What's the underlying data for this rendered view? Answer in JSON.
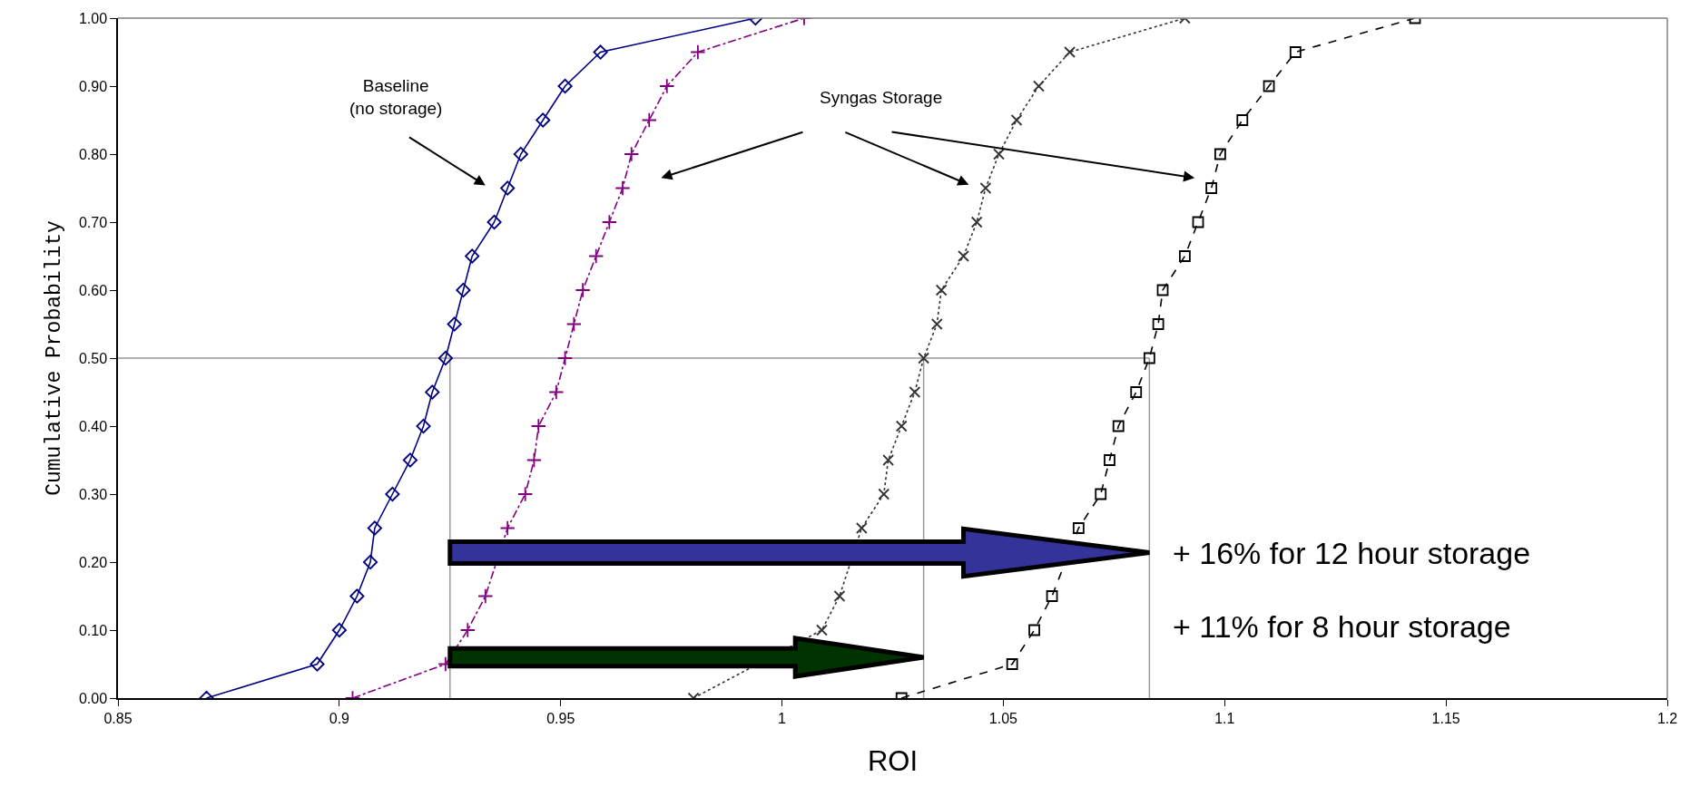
{
  "chart_data": {
    "type": "line",
    "xlabel": "ROI",
    "ylabel": "Cumulative Probability",
    "series": [
      {
        "color": "#000080",
        "marker": "diamond",
        "line_style": "solid",
        "x": [
          0.87,
          0.895,
          0.9,
          0.904,
          0.907,
          0.908,
          0.912,
          0.916,
          0.919,
          0.921,
          0.924,
          0.926,
          0.928,
          0.93,
          0.935,
          0.938,
          0.941,
          0.946,
          0.951,
          0.959,
          0.994
        ],
        "values": [
          0,
          0.05,
          0.1,
          0.15,
          0.2,
          0.25,
          0.3,
          0.35,
          0.4,
          0.45,
          0.5,
          0.55,
          0.6,
          0.65,
          0.7,
          0.75,
          0.8,
          0.85,
          0.9,
          0.95,
          1.0
        ]
      },
      {
        "color": "#800080",
        "marker": "cross",
        "line_style": "dashdot",
        "x": [
          0.903,
          0.924,
          0.929,
          0.933,
          null,
          0.938,
          0.942,
          0.944,
          0.945,
          0.949,
          0.951,
          0.953,
          0.955,
          0.958,
          0.961,
          0.964,
          0.966,
          0.97,
          0.974,
          0.981,
          1.005
        ],
        "values": [
          0,
          0.05,
          0.1,
          0.15,
          null,
          0.25,
          0.3,
          0.35,
          0.4,
          0.45,
          0.5,
          0.55,
          0.6,
          0.65,
          0.7,
          0.75,
          0.8,
          0.85,
          0.9,
          0.95,
          1.0
        ]
      },
      {
        "color": "#333333",
        "marker": "x",
        "line_style": "dotted",
        "x": [
          0.98,
          null,
          1.009,
          1.013,
          null,
          1.018,
          1.023,
          1.024,
          1.027,
          1.03,
          1.032,
          1.035,
          1.036,
          1.041,
          1.044,
          1.046,
          1.049,
          1.053,
          1.058,
          1.065,
          1.091
        ],
        "values": [
          0,
          null,
          0.1,
          0.15,
          null,
          0.25,
          0.3,
          0.35,
          0.4,
          0.45,
          0.5,
          0.55,
          0.6,
          0.65,
          0.7,
          0.75,
          0.8,
          0.85,
          0.9,
          0.95,
          1.0
        ]
      },
      {
        "color": "#000000",
        "marker": "square",
        "line_style": "dashed",
        "x": [
          1.027,
          1.052,
          1.057,
          1.061,
          null,
          1.067,
          1.072,
          1.074,
          1.076,
          1.08,
          1.083,
          1.085,
          1.086,
          1.091,
          1.094,
          1.097,
          1.099,
          1.104,
          1.11,
          1.116,
          1.143
        ],
        "values": [
          0,
          0.05,
          0.1,
          0.15,
          null,
          0.25,
          0.3,
          0.35,
          0.4,
          0.45,
          0.5,
          0.55,
          0.6,
          0.65,
          0.7,
          0.75,
          0.8,
          0.85,
          0.9,
          0.95,
          1.0
        ]
      }
    ],
    "xlim": [
      0.85,
      1.2
    ],
    "xticks": [
      0.85,
      0.9,
      0.95,
      1,
      1.05,
      1.1,
      1.15,
      1.2
    ],
    "ylim": [
      0,
      1
    ],
    "yticks": [
      {
        "value": 0,
        "label": "0.00"
      },
      {
        "value": 0.1,
        "label": "0.10"
      },
      {
        "value": 0.2,
        "label": "0.20"
      },
      {
        "value": 0.3,
        "label": "0.30"
      },
      {
        "value": 0.4,
        "label": "0.40"
      },
      {
        "value": 0.5,
        "label": "0.50"
      },
      {
        "value": 0.6,
        "label": "0.60"
      },
      {
        "value": 0.7,
        "label": "0.70"
      },
      {
        "value": 0.8,
        "label": "0.80"
      },
      {
        "value": 0.9,
        "label": "0.90"
      },
      {
        "value": 1,
        "label": "1.00"
      }
    ],
    "ref_lines": [
      {
        "axis": "y",
        "value": 0.5,
        "color": "#999999"
      },
      {
        "axis": "x",
        "value": 0.925,
        "color": "#999999"
      },
      {
        "axis": "x",
        "value": 1.032,
        "color": "#999999"
      },
      {
        "axis": "x",
        "value": 1.083,
        "color": "#999999"
      }
    ],
    "annotations": [
      "Baseline\n(no storage)",
      "Syngas Storage",
      "+ 16% for 12 hour storage",
      "+ 11% for 8 hour storage"
    ],
    "grid": false
  }
}
